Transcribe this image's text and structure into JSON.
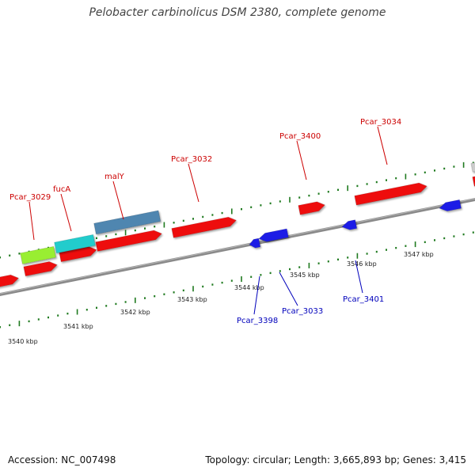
{
  "title": "Pelobacter carbinolicus DSM 2380, complete genome",
  "footer": {
    "accession": "Accession: NC_007498",
    "stats": "Topology: circular; Length: 3,665,893 bp; Genes: 3,415"
  },
  "colors": {
    "forward_gene": "#ee1111",
    "reverse_gene": "#1a1ae6",
    "fucA_gene": "#22cccc",
    "malY_gene": "#4f86b0",
    "yellowgreen_gene": "#99ee33",
    "backbone": "#8a8a8a",
    "tick": "#1f7a1f",
    "forward_label": "#cc0000",
    "reverse_label": "#0000bb"
  },
  "scale_ticks": [
    {
      "label": "3540 kbp"
    },
    {
      "label": "3541 kbp"
    },
    {
      "label": "3542 kbp"
    },
    {
      "label": "3543 kbp"
    },
    {
      "label": "3544 kbp"
    },
    {
      "label": "3545 kbp"
    },
    {
      "label": "3546 kbp"
    },
    {
      "label": "3547 kbp"
    }
  ],
  "gene_labels": {
    "pcar_3029": "Pcar_3029",
    "fucA": "fucA",
    "malY": "malY",
    "pcar_3032": "Pcar_3032",
    "pcar_3400": "Pcar_3400",
    "pcar_3034": "Pcar_3034",
    "pcar_3398": "Pcar_3398",
    "pcar_3033": "Pcar_3033",
    "pcar_3401": "Pcar_3401"
  }
}
